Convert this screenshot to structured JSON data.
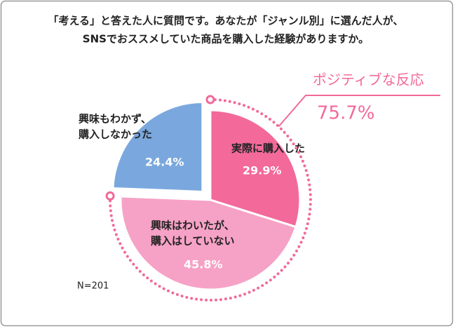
{
  "chart_data": {
    "type": "pie",
    "title": [
      "「考える」と答えた人に質問です。あなたが「ジャンル別」に選んだ人が、",
      "SNSでおススメしていた商品を購入した経験がありますか。"
    ],
    "categories": [
      [
        "実際に購入した"
      ],
      [
        "興味はわいたが、",
        "購入はしていない"
      ],
      [
        "興味もわかず、",
        "購入しなかった"
      ]
    ],
    "values": [
      29.9,
      45.8,
      24.4
    ],
    "value_labels": [
      "29.9%",
      "45.8%",
      "24.4%"
    ],
    "colors": [
      "#f2699a",
      "#f6a2c6",
      "#7aa8de"
    ],
    "annotation": {
      "text": "ポジティブな反応",
      "value": 75.7,
      "value_label": "75.7%",
      "color": "#f2699a"
    },
    "note": "N=201"
  }
}
